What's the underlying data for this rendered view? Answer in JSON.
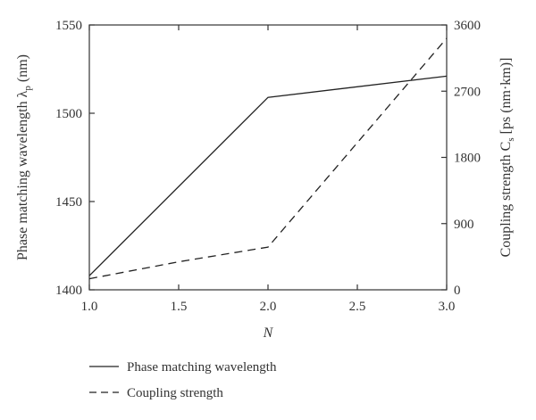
{
  "chart_data": {
    "type": "line",
    "x": [
      1.0,
      2.0,
      3.0
    ],
    "xlabel": "N",
    "xlim": [
      1.0,
      3.0
    ],
    "x_ticks": [
      1.0,
      1.5,
      2.0,
      2.5,
      3.0
    ],
    "x_tick_labels": [
      "1.0",
      "1.5",
      "2.0",
      "2.5",
      "3.0"
    ],
    "y_left": {
      "label_main": "Phase matching wavelength λ",
      "label_sub": "p",
      "label_tail": " (nm)",
      "lim": [
        1400,
        1550
      ],
      "ticks": [
        1400,
        1450,
        1500,
        1550
      ],
      "tick_labels": [
        "1400",
        "1450",
        "1500",
        "1550"
      ]
    },
    "y_right": {
      "label_main": "Coupling strength C",
      "label_sub": "s",
      "label_tail": " [ps (nm·km)]",
      "lim": [
        0,
        3600
      ],
      "ticks": [
        0,
        900,
        1800,
        2700,
        3600
      ],
      "tick_labels": [
        "0",
        "900",
        "1800",
        "2700",
        "3600"
      ]
    },
    "series": [
      {
        "name": "Phase matching wavelength",
        "axis": "left",
        "style": "solid",
        "x": [
          1.0,
          2.0,
          3.0
        ],
        "values": [
          1408,
          1509,
          1521
        ]
      },
      {
        "name": "Coupling strength",
        "axis": "right",
        "style": "dashed",
        "x": [
          1.0,
          1.5,
          2.0,
          3.0
        ],
        "values": [
          150,
          380,
          580,
          3420
        ]
      }
    ],
    "legend_position": "bottom-left",
    "grid": false
  }
}
